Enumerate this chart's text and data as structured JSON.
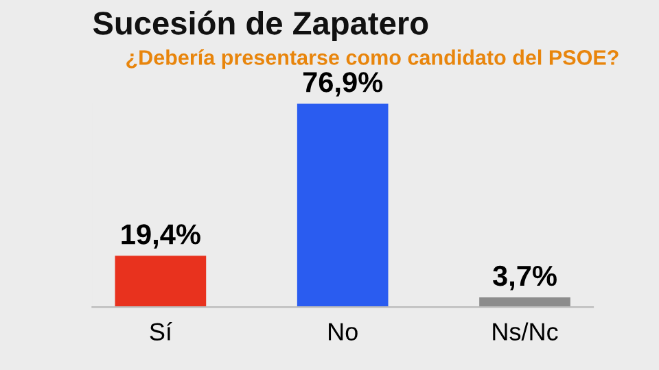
{
  "chart_data": {
    "type": "bar",
    "title": "Sucesión de Zapatero",
    "subtitle": "¿Debería presentarse como candidato del PSOE?",
    "categories": [
      "Sí",
      "No",
      "Ns/Nc"
    ],
    "values": [
      19.4,
      76.9,
      3.7
    ],
    "colors": [
      "#e8321e",
      "#2a5cf0",
      "#8c8c8c"
    ],
    "value_labels": [
      "19,4%",
      "76,9%",
      "3,7%"
    ],
    "grid": false,
    "legend": false
  }
}
